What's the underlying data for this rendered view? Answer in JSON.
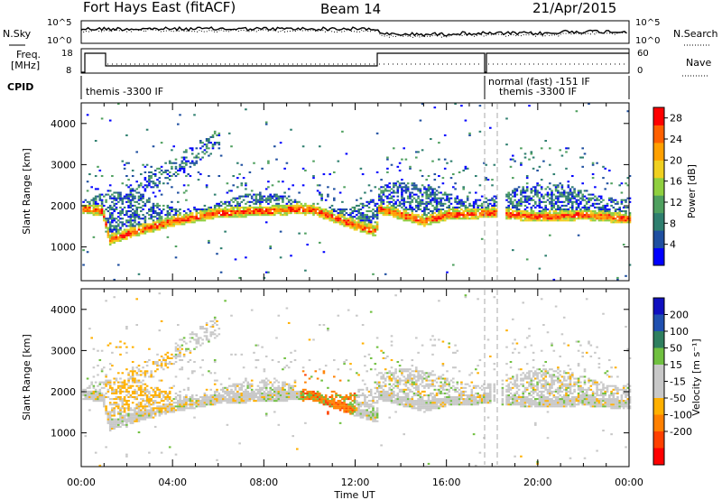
{
  "header": {
    "station": "Fort Hays East (fitACF)",
    "beam": "Beam 14",
    "date": "21/Apr/2015"
  },
  "noise_panel": {
    "left_label": "N.Sky",
    "left_ticks": [
      "10^5",
      "10^0"
    ],
    "right_label": "N.Search",
    "right_ticks": [
      "10^5",
      "10^0"
    ]
  },
  "freq_panel": {
    "left_label_1": "Freq.",
    "left_label_2": "[MHz]",
    "left_ticks": [
      "18",
      "8"
    ],
    "right_label": "Nave",
    "right_ticks": [
      "60",
      "0"
    ]
  },
  "cpid_panel": {
    "label": "CPID",
    "programs": [
      {
        "name": "themis -3300 IF",
        "start_hour": 0,
        "end_hour": 18
      },
      {
        "name": "normal (fast) -151 IF",
        "start_hour": 18,
        "end_hour": 24
      },
      {
        "name": "themis -3300 IF",
        "start_hour": 18,
        "end_hour": 24
      }
    ]
  },
  "colors": {
    "power_scale": [
      "#0000ff",
      "#1f4fa0",
      "#2f7f6f",
      "#4fa05f",
      "#8fcf3f",
      "#f0d020",
      "#ffa000",
      "#ff6000",
      "#ff0000"
    ],
    "velocity_scale": [
      "#1010c0",
      "#2050b0",
      "#2f7f5f",
      "#70c040",
      "#c8c8c8",
      "#c8c8c8",
      "#ffb000",
      "#ff8000",
      "#ff4000",
      "#ff0000"
    ]
  },
  "chart_data": [
    {
      "type": "heatmap",
      "title": "Power",
      "ylabel": "Slant Range [km]",
      "xlabel": "Time UT",
      "x_ticks": [
        "00:00",
        "04:00",
        "08:00",
        "12:00",
        "16:00",
        "20:00",
        "00:00"
      ],
      "xlim_hours": [
        0,
        24
      ],
      "y_ticks": [
        1000,
        2000,
        3000,
        4000
      ],
      "ylim": [
        180,
        4500
      ],
      "colorbar": {
        "label": "Power [dB]",
        "ticks": [
          4,
          8,
          12,
          16,
          20,
          24,
          28
        ],
        "range": [
          0,
          30
        ]
      },
      "main_band": [
        {
          "t": 0.0,
          "r": 1900
        },
        {
          "t": 0.9,
          "r": 1850
        },
        {
          "t": 1.2,
          "r": 1150
        },
        {
          "t": 2.0,
          "r": 1300
        },
        {
          "t": 4.0,
          "r": 1600
        },
        {
          "t": 6.0,
          "r": 1800
        },
        {
          "t": 8.0,
          "r": 1850
        },
        {
          "t": 10.0,
          "r": 1900
        },
        {
          "t": 12.0,
          "r": 1500
        },
        {
          "t": 12.9,
          "r": 1350
        },
        {
          "t": 13.0,
          "r": 1900
        },
        {
          "t": 14.0,
          "r": 1750
        },
        {
          "t": 15.0,
          "r": 1600
        },
        {
          "t": 16.0,
          "r": 1750
        },
        {
          "t": 18.0,
          "r": 1800
        },
        {
          "t": 20.0,
          "r": 1700
        },
        {
          "t": 22.0,
          "r": 1750
        },
        {
          "t": 24.0,
          "r": 1650
        }
      ]
    },
    {
      "type": "heatmap",
      "title": "Velocity",
      "ylabel": "Slant Range [km]",
      "xlabel": "Time UT",
      "x_ticks": [
        "00:00",
        "04:00",
        "08:00",
        "12:00",
        "16:00",
        "20:00",
        "00:00"
      ],
      "xlim_hours": [
        0,
        24
      ],
      "y_ticks": [
        1000,
        2000,
        3000,
        4000
      ],
      "ylim": [
        180,
        4500
      ],
      "colorbar": {
        "label": "Velocity [m s⁻¹]",
        "ticks": [
          200,
          100,
          50,
          15,
          -15,
          -50,
          -100,
          -200
        ],
        "range": [
          -250,
          250
        ]
      }
    }
  ]
}
